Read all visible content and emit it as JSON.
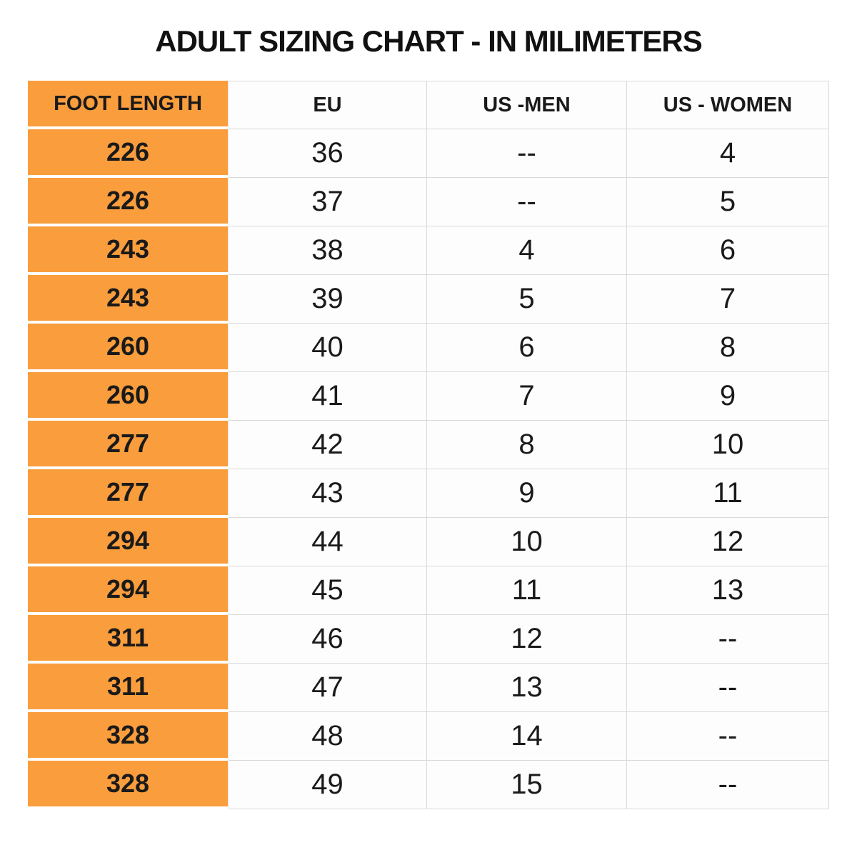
{
  "title": "ADULT SIZING CHART - IN MILIMETERS",
  "colors": {
    "accent_orange": "#F99D3D",
    "grid_line": "#D9D9D9",
    "text": "#1A1A1A",
    "background": "#FFFFFF"
  },
  "chart_data": {
    "type": "table",
    "title": "ADULT SIZING CHART - IN MILIMETERS",
    "columns": [
      "FOOT LENGTH",
      "EU",
      "US -MEN",
      "US - WOMEN"
    ],
    "rows": [
      [
        "226",
        "36",
        "--",
        "4"
      ],
      [
        "226",
        "37",
        "--",
        "5"
      ],
      [
        "243",
        "38",
        "4",
        "6"
      ],
      [
        "243",
        "39",
        "5",
        "7"
      ],
      [
        "260",
        "40",
        "6",
        "8"
      ],
      [
        "260",
        "41",
        "7",
        "9"
      ],
      [
        "277",
        "42",
        "8",
        "10"
      ],
      [
        "277",
        "43",
        "9",
        "11"
      ],
      [
        "294",
        "44",
        "10",
        "12"
      ],
      [
        "294",
        "45",
        "11",
        "13"
      ],
      [
        "311",
        "46",
        "12",
        "--"
      ],
      [
        "311",
        "47",
        "13",
        "--"
      ],
      [
        "328",
        "48",
        "14",
        "--"
      ],
      [
        "328",
        "49",
        "15",
        "--"
      ]
    ]
  }
}
